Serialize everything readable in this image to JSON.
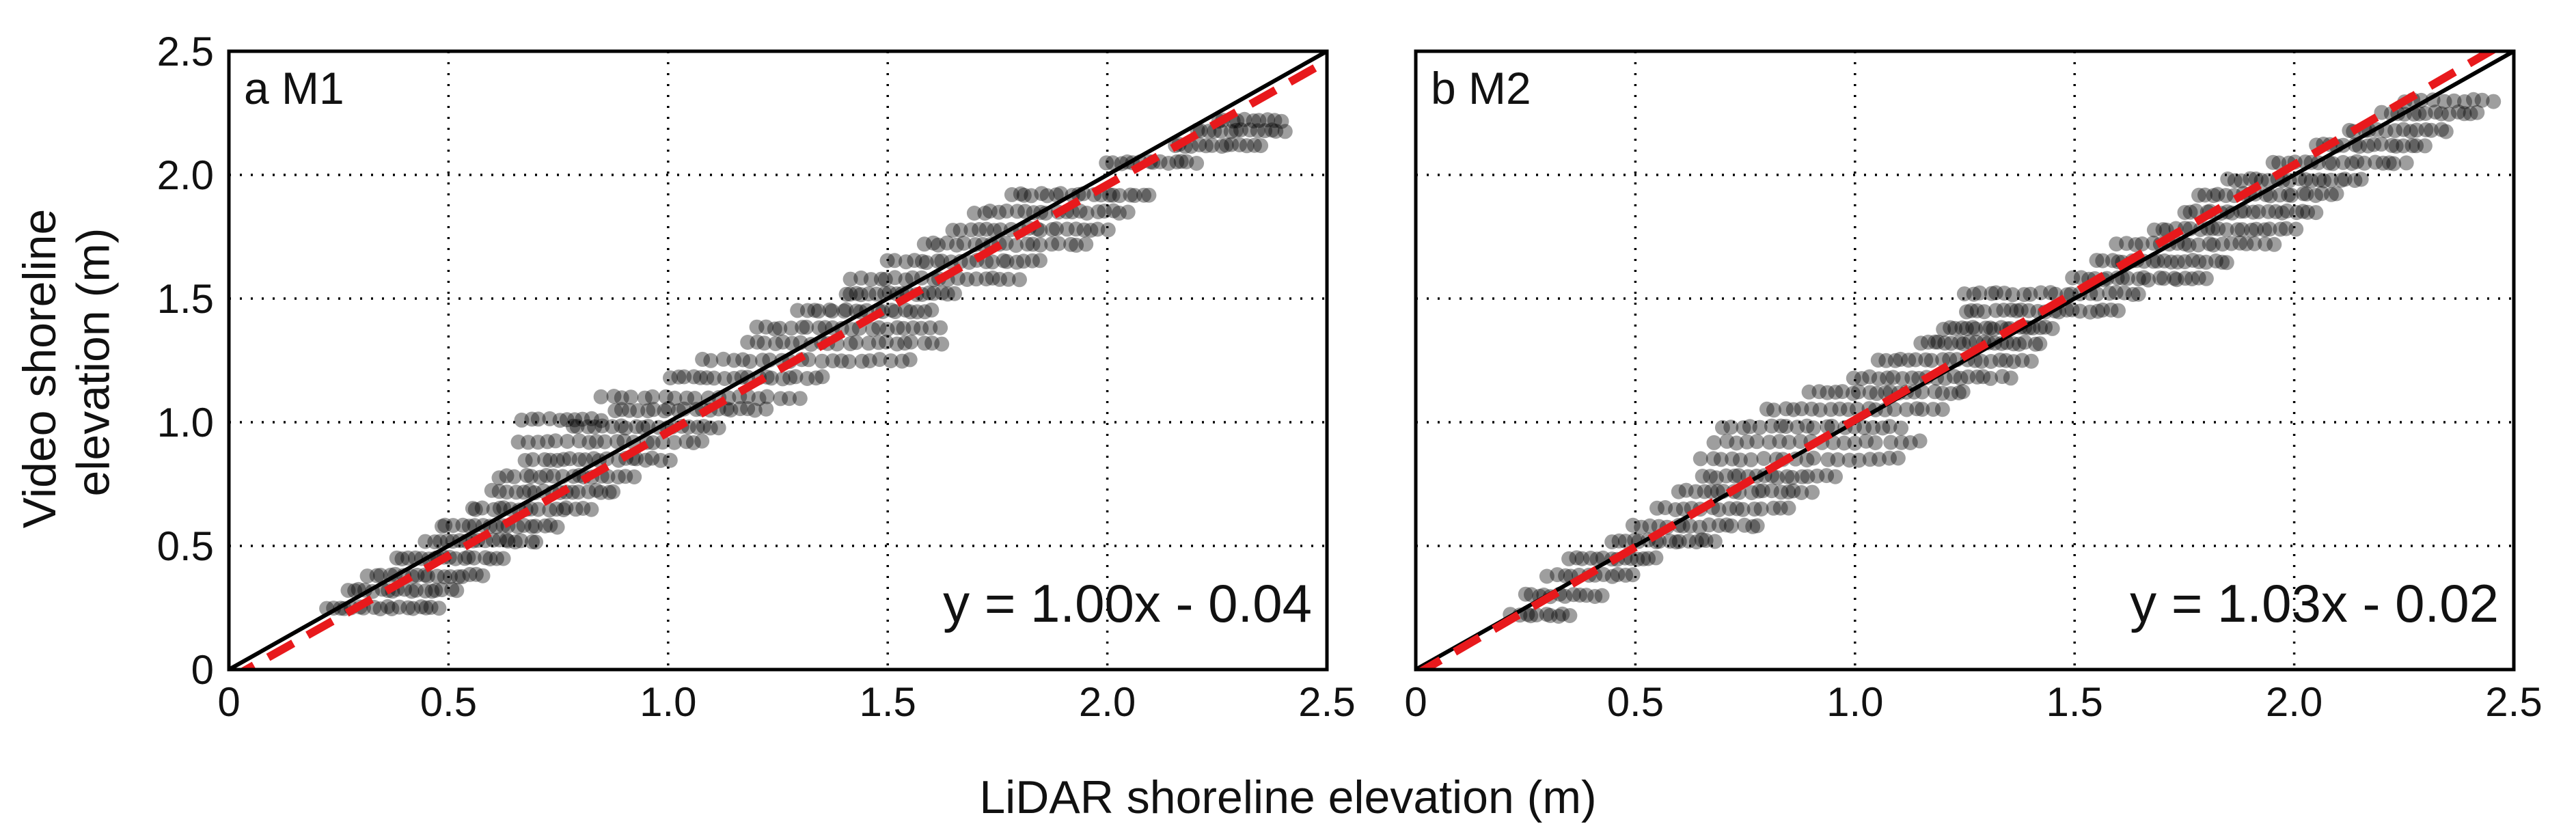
{
  "figure": {
    "xlabel": "LiDAR shoreline elevation (m)",
    "ylabel_lines": [
      "Video shoreline",
      "elevation (m)"
    ]
  },
  "chart_data": [
    {
      "type": "scatter",
      "panel": "a M1",
      "xlabel": "LiDAR shoreline elevation (m)",
      "ylabel": "Video shoreline elevation (m)",
      "xlim": [
        0,
        2.5
      ],
      "ylim": [
        0,
        2.5
      ],
      "grid": true,
      "x_ticks": [
        0,
        0.5,
        1.0,
        1.5,
        2.0,
        2.5
      ],
      "x_tick_labels": [
        "0",
        "0.5",
        "1.0",
        "1.5",
        "2.0",
        "2.5"
      ],
      "y_ticks": [
        0,
        0.5,
        1.0,
        1.5,
        2.0,
        2.5
      ],
      "y_tick_labels": [
        "0",
        "0.5",
        "1.0",
        "1.5",
        "2.0",
        "2.5"
      ],
      "fit_equation": "y = 1.00x - 0.04",
      "fit": {
        "slope": 1.0,
        "intercept": -0.04,
        "color": "#e8191c"
      },
      "identity_line": {
        "slope": 1.0,
        "intercept": 0.0,
        "color": "#000000"
      },
      "point_color": "#000000",
      "clusters": [
        {
          "y": 0.25,
          "x_min": 0.22,
          "x_max": 0.48,
          "n": 18
        },
        {
          "y": 0.32,
          "x_min": 0.27,
          "x_max": 0.52,
          "n": 18
        },
        {
          "y": 0.38,
          "x_min": 0.32,
          "x_max": 0.58,
          "n": 18
        },
        {
          "y": 0.45,
          "x_min": 0.38,
          "x_max": 0.62,
          "n": 18
        },
        {
          "y": 0.52,
          "x_min": 0.45,
          "x_max": 0.7,
          "n": 18
        },
        {
          "y": 0.58,
          "x_min": 0.48,
          "x_max": 0.75,
          "n": 18
        },
        {
          "y": 0.65,
          "x_min": 0.55,
          "x_max": 0.82,
          "n": 18
        },
        {
          "y": 0.72,
          "x_min": 0.6,
          "x_max": 0.88,
          "n": 18
        },
        {
          "y": 0.78,
          "x_min": 0.62,
          "x_max": 0.92,
          "n": 18
        },
        {
          "y": 0.85,
          "x_min": 0.68,
          "x_max": 1.0,
          "n": 20
        },
        {
          "y": 0.92,
          "x_min": 0.66,
          "x_max": 1.08,
          "n": 20
        },
        {
          "y": 0.98,
          "x_min": 0.78,
          "x_max": 1.12,
          "n": 20
        },
        {
          "y": 1.01,
          "x_min": 0.67,
          "x_max": 0.85,
          "n": 10
        },
        {
          "y": 1.05,
          "x_min": 0.88,
          "x_max": 1.22,
          "n": 20
        },
        {
          "y": 1.1,
          "x_min": 0.85,
          "x_max": 1.3,
          "n": 20
        },
        {
          "y": 1.18,
          "x_min": 1.0,
          "x_max": 1.35,
          "n": 20
        },
        {
          "y": 1.25,
          "x_min": 1.08,
          "x_max": 1.55,
          "n": 22
        },
        {
          "y": 1.32,
          "x_min": 1.18,
          "x_max": 1.62,
          "n": 22
        },
        {
          "y": 1.38,
          "x_min": 1.2,
          "x_max": 1.62,
          "n": 22
        },
        {
          "y": 1.45,
          "x_min": 1.3,
          "x_max": 1.6,
          "n": 20
        },
        {
          "y": 1.52,
          "x_min": 1.4,
          "x_max": 1.65,
          "n": 18
        },
        {
          "y": 1.58,
          "x_min": 1.42,
          "x_max": 1.8,
          "n": 20
        },
        {
          "y": 1.65,
          "x_min": 1.5,
          "x_max": 1.85,
          "n": 20
        },
        {
          "y": 1.72,
          "x_min": 1.58,
          "x_max": 1.95,
          "n": 20
        },
        {
          "y": 1.78,
          "x_min": 1.65,
          "x_max": 2.0,
          "n": 20
        },
        {
          "y": 1.85,
          "x_min": 1.7,
          "x_max": 2.05,
          "n": 20
        },
        {
          "y": 1.92,
          "x_min": 1.78,
          "x_max": 2.1,
          "n": 20
        },
        {
          "y": 2.05,
          "x_min": 2.0,
          "x_max": 2.2,
          "n": 14
        },
        {
          "y": 2.12,
          "x_min": 2.15,
          "x_max": 2.35,
          "n": 14
        },
        {
          "y": 2.18,
          "x_min": 2.2,
          "x_max": 2.4,
          "n": 14
        },
        {
          "y": 2.22,
          "x_min": 2.25,
          "x_max": 2.4,
          "n": 10
        }
      ]
    },
    {
      "type": "scatter",
      "panel": "b M2",
      "xlabel": "LiDAR shoreline elevation (m)",
      "ylabel": "Video shoreline elevation (m)",
      "xlim": [
        0,
        2.5
      ],
      "ylim": [
        0,
        2.5
      ],
      "grid": true,
      "x_ticks": [
        0,
        0.5,
        1.0,
        1.5,
        2.0,
        2.5
      ],
      "x_tick_labels": [
        "0",
        "0.5",
        "1.0",
        "1.5",
        "2.0",
        "2.5"
      ],
      "y_ticks": [
        0,
        0.5,
        1.0,
        1.5,
        2.0,
        2.5
      ],
      "y_tick_labels": [],
      "fit_equation": "y = 1.03x - 0.02",
      "fit": {
        "slope": 1.03,
        "intercept": -0.02,
        "color": "#e8191c"
      },
      "identity_line": {
        "slope": 1.0,
        "intercept": 0.0,
        "color": "#000000"
      },
      "point_color": "#000000",
      "clusters": [
        {
          "y": 0.22,
          "x_min": 0.22,
          "x_max": 0.35,
          "n": 10
        },
        {
          "y": 0.3,
          "x_min": 0.25,
          "x_max": 0.42,
          "n": 12
        },
        {
          "y": 0.38,
          "x_min": 0.3,
          "x_max": 0.5,
          "n": 12
        },
        {
          "y": 0.45,
          "x_min": 0.35,
          "x_max": 0.55,
          "n": 14
        },
        {
          "y": 0.52,
          "x_min": 0.45,
          "x_max": 0.68,
          "n": 16
        },
        {
          "y": 0.58,
          "x_min": 0.5,
          "x_max": 0.78,
          "n": 16
        },
        {
          "y": 0.65,
          "x_min": 0.55,
          "x_max": 0.85,
          "n": 16
        },
        {
          "y": 0.72,
          "x_min": 0.6,
          "x_max": 0.9,
          "n": 18
        },
        {
          "y": 0.78,
          "x_min": 0.65,
          "x_max": 0.95,
          "n": 18
        },
        {
          "y": 0.85,
          "x_min": 0.65,
          "x_max": 1.1,
          "n": 20
        },
        {
          "y": 0.92,
          "x_min": 0.68,
          "x_max": 1.15,
          "n": 20
        },
        {
          "y": 0.98,
          "x_min": 0.7,
          "x_max": 1.1,
          "n": 20
        },
        {
          "y": 1.05,
          "x_min": 0.8,
          "x_max": 1.2,
          "n": 20
        },
        {
          "y": 1.12,
          "x_min": 0.9,
          "x_max": 1.25,
          "n": 20
        },
        {
          "y": 1.18,
          "x_min": 1.0,
          "x_max": 1.35,
          "n": 20
        },
        {
          "y": 1.25,
          "x_min": 1.05,
          "x_max": 1.4,
          "n": 20
        },
        {
          "y": 1.32,
          "x_min": 1.15,
          "x_max": 1.42,
          "n": 20
        },
        {
          "y": 1.38,
          "x_min": 1.2,
          "x_max": 1.45,
          "n": 20
        },
        {
          "y": 1.45,
          "x_min": 1.25,
          "x_max": 1.6,
          "n": 22
        },
        {
          "y": 1.52,
          "x_min": 1.25,
          "x_max": 1.65,
          "n": 22
        },
        {
          "y": 1.58,
          "x_min": 1.5,
          "x_max": 1.8,
          "n": 20
        },
        {
          "y": 1.65,
          "x_min": 1.55,
          "x_max": 1.85,
          "n": 20
        },
        {
          "y": 1.72,
          "x_min": 1.6,
          "x_max": 1.95,
          "n": 20
        },
        {
          "y": 1.78,
          "x_min": 1.68,
          "x_max": 2.0,
          "n": 20
        },
        {
          "y": 1.85,
          "x_min": 1.75,
          "x_max": 2.05,
          "n": 20
        },
        {
          "y": 1.92,
          "x_min": 1.78,
          "x_max": 2.1,
          "n": 20
        },
        {
          "y": 1.98,
          "x_min": 1.85,
          "x_max": 2.15,
          "n": 20
        },
        {
          "y": 2.05,
          "x_min": 1.95,
          "x_max": 2.25,
          "n": 18
        },
        {
          "y": 2.12,
          "x_min": 2.05,
          "x_max": 2.3,
          "n": 16
        },
        {
          "y": 2.18,
          "x_min": 2.12,
          "x_max": 2.35,
          "n": 14
        },
        {
          "y": 2.25,
          "x_min": 2.2,
          "x_max": 2.42,
          "n": 14
        },
        {
          "y": 2.3,
          "x_min": 2.25,
          "x_max": 2.45,
          "n": 10
        }
      ]
    }
  ]
}
